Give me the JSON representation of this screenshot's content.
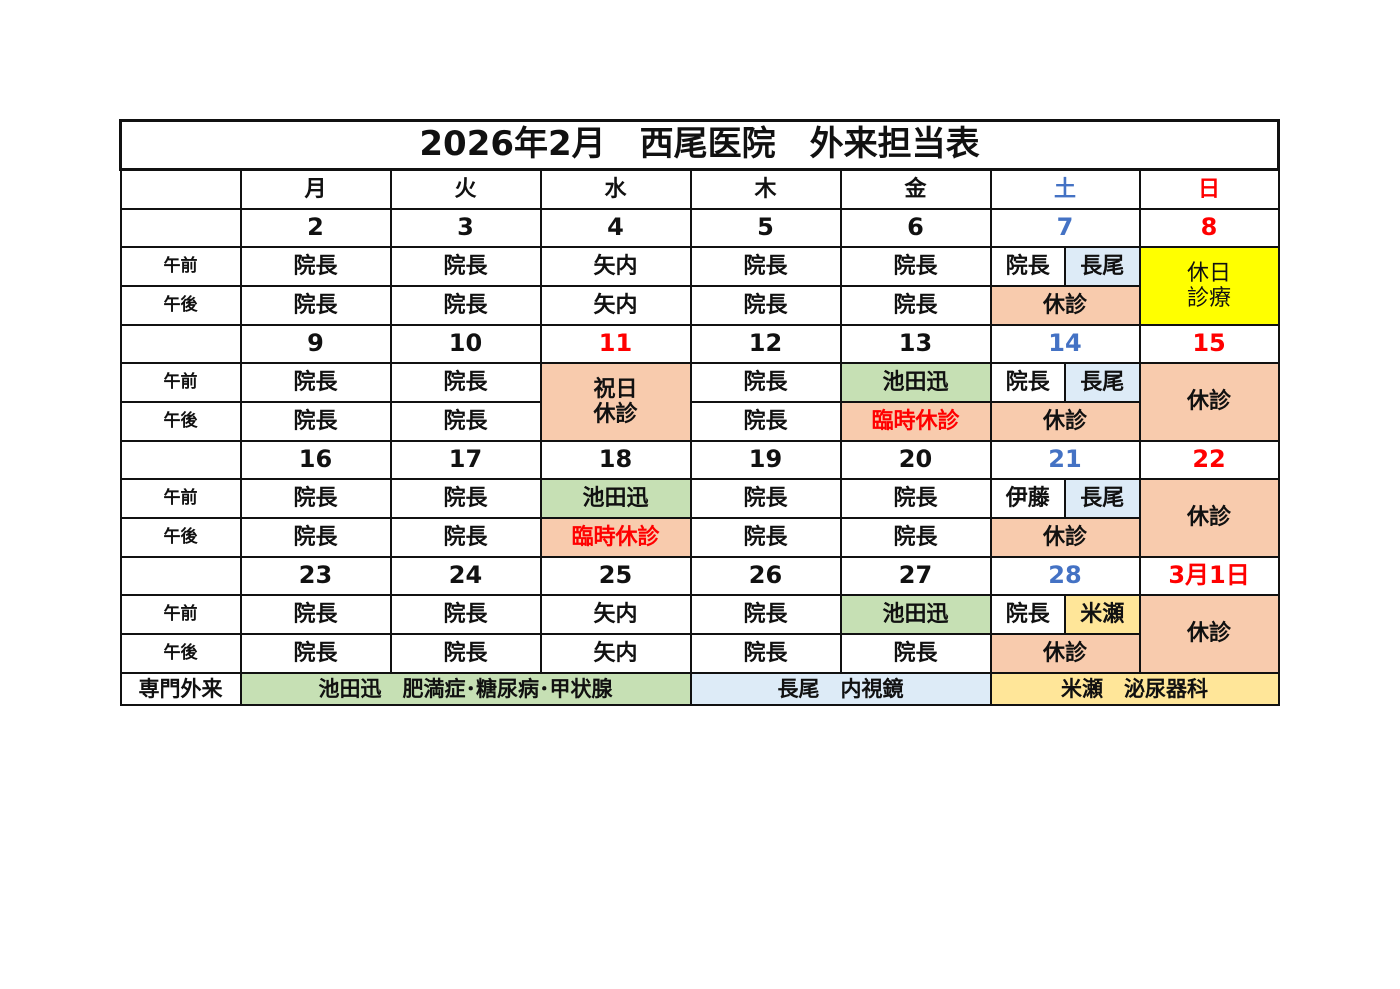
{
  "title": "2026年2月　西尾医院　外来担当表",
  "colors": {
    "saturday": "#4472c4",
    "sunday": "#ff0000",
    "holiday_bg": "#f8cbad",
    "ikeda_bg": "#c6e0b4",
    "nagao_bg": "#ddebf7",
    "yonese_bg": "#ffe699",
    "holiday_clinic_bg": "#ffff00",
    "alert_text": "#ff0000"
  },
  "weekdays": [
    {
      "text": "月"
    },
    {
      "text": "火"
    },
    {
      "text": "水"
    },
    {
      "text": "木"
    },
    {
      "text": "金"
    },
    {
      "text": "土",
      "color": "#4472c4"
    },
    {
      "text": "日",
      "color": "#ff0000"
    }
  ],
  "labels": {
    "am": "午前",
    "pm": "午後",
    "specialty": "専門外来"
  },
  "weeks": [
    {
      "dates": [
        {
          "text": "2"
        },
        {
          "text": "3"
        },
        {
          "text": "4"
        },
        {
          "text": "5"
        },
        {
          "text": "6"
        },
        {
          "text": "7",
          "color": "#4472c4"
        },
        {
          "text": "8",
          "color": "#ff0000"
        }
      ],
      "am": [
        {
          "text": "院長"
        },
        {
          "text": "院長"
        },
        {
          "text": "矢内"
        },
        {
          "text": "院長"
        },
        {
          "text": "院長"
        },
        {
          "split": [
            {
              "text": "院長"
            },
            {
              "text": "長尾",
              "bg": "#ddebf7"
            }
          ]
        },
        {
          "text": "休日\n診療",
          "bg": "#ffff00",
          "rowspan": 2,
          "normal": true
        }
      ],
      "pm": [
        {
          "text": "院長"
        },
        {
          "text": "院長"
        },
        {
          "text": "矢内"
        },
        {
          "text": "院長"
        },
        {
          "text": "院長"
        },
        {
          "text": "休診",
          "bg": "#f8cbad"
        }
      ]
    },
    {
      "dates": [
        {
          "text": "9"
        },
        {
          "text": "10"
        },
        {
          "text": "11",
          "color": "#ff0000"
        },
        {
          "text": "12"
        },
        {
          "text": "13"
        },
        {
          "text": "14",
          "color": "#4472c4"
        },
        {
          "text": "15",
          "color": "#ff0000"
        }
      ],
      "am": [
        {
          "text": "院長"
        },
        {
          "text": "院長"
        },
        {
          "text": "祝日\n休診",
          "bg": "#f8cbad",
          "rowspan": 2
        },
        {
          "text": "院長"
        },
        {
          "text": "池田迅",
          "bg": "#c6e0b4"
        },
        {
          "split": [
            {
              "text": "院長"
            },
            {
              "text": "長尾",
              "bg": "#ddebf7"
            }
          ]
        },
        {
          "text": "休診",
          "bg": "#f8cbad",
          "rowspan": 2
        }
      ],
      "pm": [
        {
          "text": "院長"
        },
        {
          "text": "院長"
        },
        {
          "text": "院長"
        },
        {
          "text": "臨時休診",
          "bg": "#f8cbad",
          "color": "#ff0000"
        },
        {
          "text": "休診",
          "bg": "#f8cbad"
        }
      ]
    },
    {
      "dates": [
        {
          "text": "16"
        },
        {
          "text": "17"
        },
        {
          "text": "18"
        },
        {
          "text": "19"
        },
        {
          "text": "20"
        },
        {
          "text": "21",
          "color": "#4472c4"
        },
        {
          "text": "22",
          "color": "#ff0000"
        }
      ],
      "am": [
        {
          "text": "院長"
        },
        {
          "text": "院長"
        },
        {
          "text": "池田迅",
          "bg": "#c6e0b4"
        },
        {
          "text": "院長"
        },
        {
          "text": "院長"
        },
        {
          "split": [
            {
              "text": "伊藤"
            },
            {
              "text": "長尾",
              "bg": "#ddebf7"
            }
          ]
        },
        {
          "text": "休診",
          "bg": "#f8cbad",
          "rowspan": 2
        }
      ],
      "pm": [
        {
          "text": "院長"
        },
        {
          "text": "院長"
        },
        {
          "text": "臨時休診",
          "bg": "#f8cbad",
          "color": "#ff0000"
        },
        {
          "text": "院長"
        },
        {
          "text": "院長"
        },
        {
          "text": "休診",
          "bg": "#f8cbad"
        }
      ]
    },
    {
      "dates": [
        {
          "text": "23"
        },
        {
          "text": "24"
        },
        {
          "text": "25"
        },
        {
          "text": "26"
        },
        {
          "text": "27"
        },
        {
          "text": "28",
          "color": "#4472c4"
        },
        {
          "text": "3月1日",
          "color": "#ff0000"
        }
      ],
      "am": [
        {
          "text": "院長"
        },
        {
          "text": "院長"
        },
        {
          "text": "矢内"
        },
        {
          "text": "院長"
        },
        {
          "text": "池田迅",
          "bg": "#c6e0b4"
        },
        {
          "split": [
            {
              "text": "院長"
            },
            {
              "text": "米瀬",
              "bg": "#ffe699"
            }
          ]
        },
        {
          "text": "休診",
          "bg": "#f8cbad",
          "rowspan": 2
        }
      ],
      "pm": [
        {
          "text": "院長"
        },
        {
          "text": "院長"
        },
        {
          "text": "矢内"
        },
        {
          "text": "院長"
        },
        {
          "text": "院長"
        },
        {
          "text": "休診",
          "bg": "#f8cbad"
        }
      ]
    }
  ],
  "specialty": [
    {
      "text": "池田迅　肥満症･糖尿病･甲状腺",
      "bg": "#c6e0b4",
      "colspan": 3
    },
    {
      "text": "長尾　内視鏡",
      "bg": "#ddebf7",
      "colspan": 2
    },
    {
      "text": "米瀬　泌尿器科",
      "bg": "#ffe699",
      "colspan": 2
    }
  ]
}
